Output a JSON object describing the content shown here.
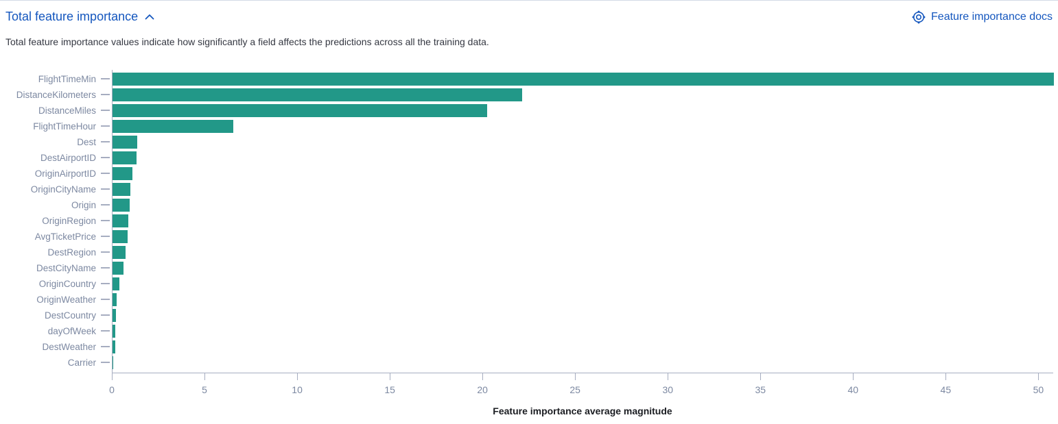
{
  "header": {
    "title": "Total feature importance",
    "docs_link": "Feature importance docs",
    "description": "Total feature importance values indicate how significantly a field affects the predictions across all the training data."
  },
  "icons": {
    "collapse": "chevron-up-icon",
    "docs": "lifebuoy-docs-icon"
  },
  "colors": {
    "accent_blue": "#1456be",
    "bar_teal": "#229888",
    "axis_gray": "#a6adc0",
    "label_gray": "#7c88a1",
    "text_dark": "#343741"
  },
  "chart_data": {
    "type": "bar",
    "orientation": "horizontal",
    "title": "Total feature importance",
    "xlabel": "Feature importance average magnitude",
    "ylabel": "",
    "legend": "none",
    "grid": false,
    "xlim": [
      0,
      50.8
    ],
    "xticks": [
      0,
      5,
      10,
      15,
      20,
      25,
      30,
      35,
      40,
      45,
      50
    ],
    "categories": [
      "FlightTimeMin",
      "DistanceKilometers",
      "DistanceMiles",
      "FlightTimeHour",
      "Dest",
      "DestAirportID",
      "OriginAirportID",
      "OriginCityName",
      "Origin",
      "OriginRegion",
      "AvgTicketPrice",
      "DestRegion",
      "DestCityName",
      "OriginCountry",
      "OriginWeather",
      "DestCountry",
      "dayOfWeek",
      "DestWeather",
      "Carrier"
    ],
    "values": [
      50.8,
      22.1,
      20.2,
      6.5,
      1.33,
      1.3,
      1.06,
      0.97,
      0.91,
      0.87,
      0.83,
      0.72,
      0.6,
      0.37,
      0.22,
      0.18,
      0.16,
      0.13,
      0.05
    ]
  }
}
